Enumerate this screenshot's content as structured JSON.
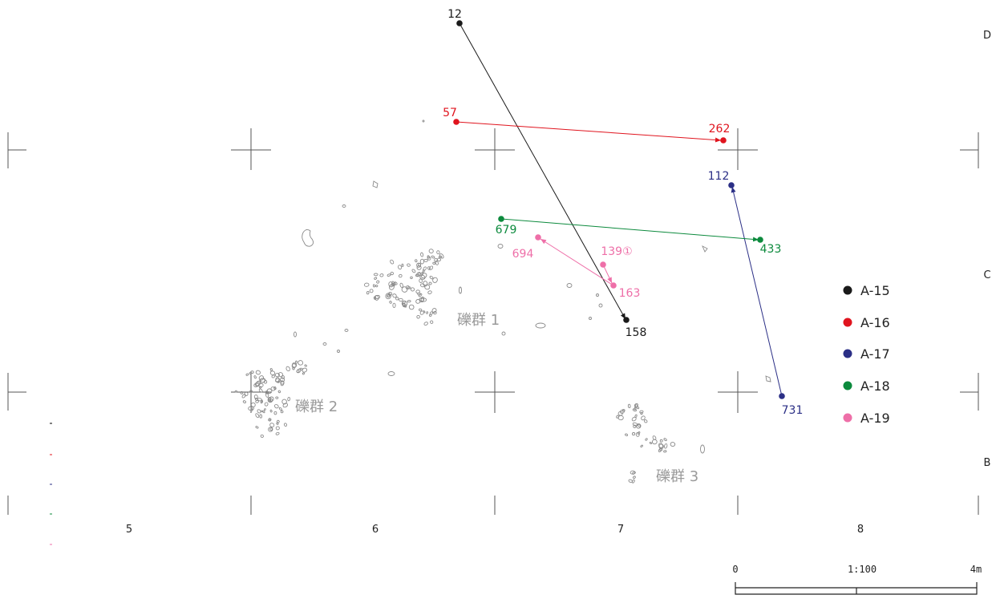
{
  "grid": {
    "col_labels": [
      "5",
      "6",
      "7",
      "8"
    ],
    "row_labels": [
      "D",
      "C",
      "B"
    ]
  },
  "rock_groups": [
    {
      "id": "g1",
      "label": "礫群 1"
    },
    {
      "id": "g2",
      "label": "礫群 2"
    },
    {
      "id": "g3",
      "label": "礫群 3"
    }
  ],
  "refits": [
    {
      "id": "A-15",
      "color": "#1a1a1a",
      "from": {
        "label": "12"
      },
      "to": {
        "label": "158"
      }
    },
    {
      "id": "A-16",
      "color": "#e0141e",
      "from": {
        "label": "57"
      },
      "to": {
        "label": "262"
      }
    },
    {
      "id": "A-17",
      "color": "#2b2f86",
      "from": {
        "label": "731"
      },
      "to": {
        "label": "112"
      }
    },
    {
      "id": "A-18",
      "color": "#0c8a3d",
      "from": {
        "label": "679"
      },
      "to": {
        "label": "433"
      }
    },
    {
      "id": "A-19",
      "color": "#ee6fa8",
      "from": {
        "label": "139①"
      },
      "to": {
        "label": "163"
      },
      "extra": {
        "label": "694"
      }
    }
  ],
  "legend": [
    {
      "label": "A-15",
      "color": "#1a1a1a"
    },
    {
      "label": "A-16",
      "color": "#e0141e"
    },
    {
      "label": "A-17",
      "color": "#2b2f86"
    },
    {
      "label": "A-18",
      "color": "#0c8a3d"
    },
    {
      "label": "A-19",
      "color": "#ee6fa8"
    }
  ],
  "scale_bar": {
    "zero_label": "0",
    "ratio_label": "1:100",
    "end_label": "4m"
  }
}
